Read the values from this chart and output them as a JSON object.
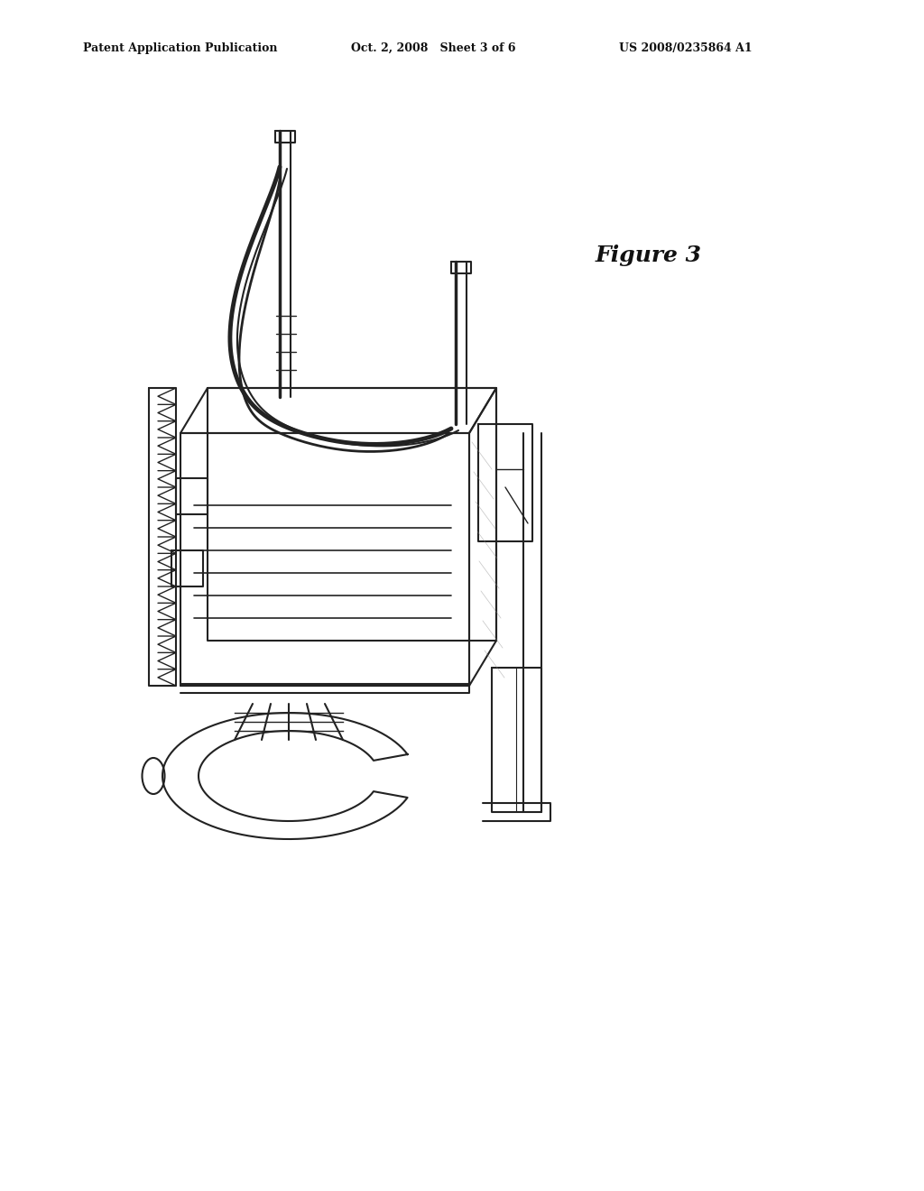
{
  "background_color": "#ffffff",
  "header_left": "Patent Application Publication",
  "header_center": "Oct. 2, 2008   Sheet 3 of 6",
  "header_right": "US 2008/0235864 A1",
  "figure_label": "Figure 3",
  "line_color": "#222222",
  "line_width": 1.5
}
